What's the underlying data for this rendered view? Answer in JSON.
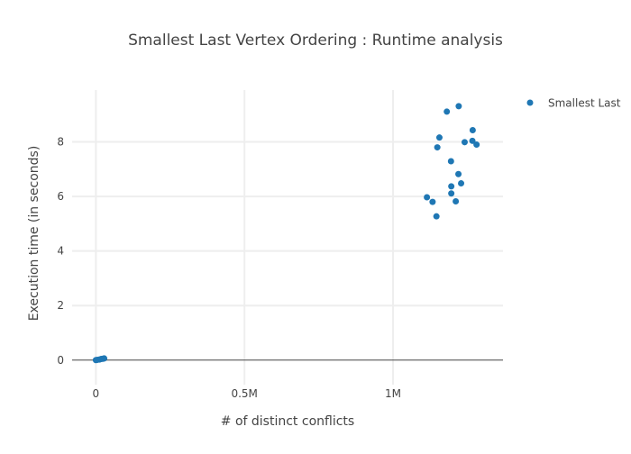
{
  "chart_data": {
    "type": "scatter",
    "title": "Smallest Last Vertex Ordering : Runtime analysis",
    "xlabel": "# of distinct conflicts",
    "ylabel": "Execution time (in seconds)",
    "xlim": [
      -80000,
      1370000
    ],
    "ylim": [
      -0.9,
      9.9
    ],
    "x_ticks": [
      {
        "value": 0,
        "label": "0"
      },
      {
        "value": 500000,
        "label": "0.5M"
      },
      {
        "value": 1000000,
        "label": "1M"
      }
    ],
    "y_ticks": [
      {
        "value": 0,
        "label": "0"
      },
      {
        "value": 2,
        "label": "2"
      },
      {
        "value": 4,
        "label": "4"
      },
      {
        "value": 6,
        "label": "6"
      },
      {
        "value": 8,
        "label": "8"
      }
    ],
    "grid": true,
    "legend_position": "top-right",
    "series": [
      {
        "name": "Smallest Last",
        "color": "#1f77b4",
        "x": [
          0,
          5000,
          12000,
          18000,
          24000,
          28000,
          1181000,
          1221000,
          1156000,
          1268000,
          1241000,
          1267000,
          1281000,
          1149000,
          1195000,
          1220000,
          1229000,
          1196000,
          1196000,
          1114000,
          1133000,
          1211000,
          1146000
        ],
        "y": [
          0.0,
          0.01,
          0.02,
          0.04,
          0.05,
          0.06,
          9.11,
          9.31,
          8.16,
          8.43,
          7.99,
          8.04,
          7.9,
          7.8,
          7.29,
          6.82,
          6.48,
          6.37,
          6.11,
          5.97,
          5.8,
          5.82,
          5.27
        ]
      }
    ]
  }
}
